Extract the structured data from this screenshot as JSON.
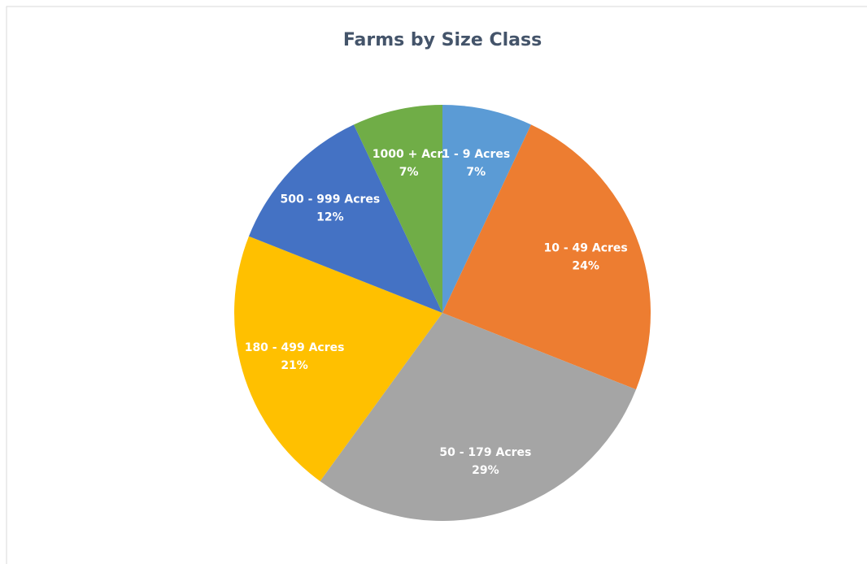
{
  "chart_data": {
    "type": "pie",
    "title": "Farms by Size Class",
    "categories": [
      "1 - 9 Acres",
      "10 - 49 Acres",
      "50 - 179 Acres",
      "180 - 499 Acres",
      "500 - 999 Acres",
      "1000 + Acr."
    ],
    "values": [
      7,
      24,
      29,
      21,
      12,
      7
    ],
    "value_labels": [
      "7%",
      "24%",
      "29%",
      "21%",
      "12%",
      "7%"
    ],
    "colors": [
      "#5b9bd5",
      "#ed7d31",
      "#a5a5a5",
      "#ffc000",
      "#4472c4",
      "#70ad47"
    ]
  }
}
